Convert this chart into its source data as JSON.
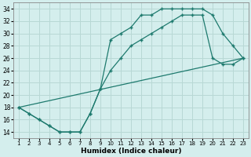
{
  "xlabel": "Humidex (Indice chaleur)",
  "bg_color": "#d4eeed",
  "grid_color": "#b8d8d5",
  "line_color": "#1e7a6e",
  "xlim": [
    0.5,
    23.5
  ],
  "ylim": [
    13,
    35
  ],
  "yticks": [
    14,
    16,
    18,
    20,
    22,
    24,
    26,
    28,
    30,
    32,
    34
  ],
  "xticks": [
    1,
    2,
    3,
    4,
    5,
    6,
    7,
    8,
    9,
    10,
    11,
    12,
    13,
    14,
    15,
    16,
    17,
    18,
    19,
    20,
    21,
    22,
    23
  ],
  "line1_x": [
    1,
    2,
    3,
    4,
    5,
    6,
    7,
    8,
    9,
    10,
    11,
    12,
    13,
    14,
    15,
    16,
    17,
    18,
    19,
    20,
    21,
    22,
    23
  ],
  "line1_y": [
    18,
    17,
    16,
    15,
    14,
    14,
    14,
    17,
    21,
    29,
    30,
    31,
    33,
    33,
    34,
    34,
    34,
    34,
    34,
    33,
    30,
    28,
    26
  ],
  "line2_x": [
    1,
    2,
    3,
    4,
    5,
    6,
    7,
    8,
    9,
    10,
    11,
    12,
    13,
    14,
    15,
    16,
    17,
    18,
    19,
    20,
    21,
    22,
    23
  ],
  "line2_y": [
    18,
    17,
    16,
    15,
    14,
    14,
    14,
    17,
    21,
    24,
    26,
    28,
    29,
    30,
    31,
    32,
    33,
    33,
    33,
    26,
    25,
    25,
    26
  ],
  "line3_x": [
    1,
    23
  ],
  "line3_y": [
    18,
    26
  ]
}
